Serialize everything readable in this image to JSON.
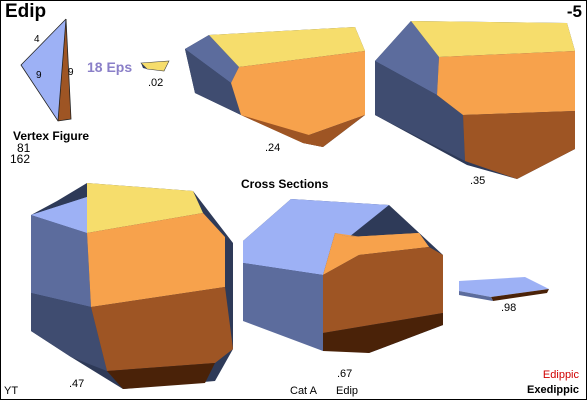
{
  "header": {
    "title": "Edip",
    "dimension": "-5"
  },
  "vertex_figure": {
    "edge_labels": {
      "top": "4",
      "left": "9",
      "right": "9"
    },
    "label": "Vertex Figure",
    "vertex_count": "81",
    "edge_count": "162"
  },
  "eps_label": "18 Eps",
  "cross_sections": {
    "title": "Cross Sections",
    "sections": [
      {
        "label": ".02"
      },
      {
        "label": ".24"
      },
      {
        "label": ".35"
      },
      {
        "label": ".47"
      },
      {
        "label": ".67"
      },
      {
        "label": ".98"
      }
    ]
  },
  "footer": {
    "left": "YT",
    "category": "Cat A",
    "short_name": "Edip",
    "name": "Edippic",
    "exe_name": "Exedippic"
  },
  "colors": {
    "yellow": "#f6dd6c",
    "orange_light": "#f7a24c",
    "orange_mid": "#9e5524",
    "orange_dark": "#4a2208",
    "blue_light": "#9db1f5",
    "blue_mid": "#5c6c9d",
    "blue_dark": "#2e3a58",
    "eps_text": "#8a7fc8",
    "edippic_text": "#d00000"
  }
}
